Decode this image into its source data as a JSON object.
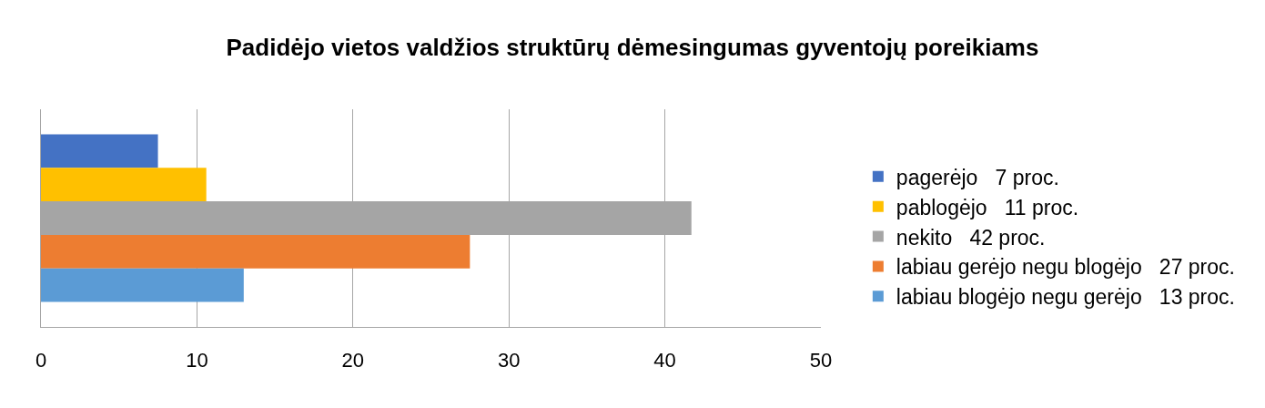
{
  "chart_data": {
    "type": "bar",
    "orientation": "horizontal",
    "title": "Padidėjo vietos valdžios struktūrų dėmesingumas gyventojų poreikiams",
    "categories": [
      null
    ],
    "series": [
      {
        "name": "pagerėjo   7 proc.",
        "color": "#4472c4",
        "values": [
          7.5
        ]
      },
      {
        "name": "pablogėjo   11 proc.",
        "color": "#ffc000",
        "values": [
          10.6
        ]
      },
      {
        "name": "nekito   42 proc.",
        "color": "#a5a5a5",
        "values": [
          41.7
        ]
      },
      {
        "name": "labiau gerėjo negu blogėjo   27 proc.",
        "color": "#ed7d31",
        "values": [
          27.5
        ]
      },
      {
        "name": "labiau blogėjo negu gerėjo   13 proc.",
        "color": "#5b9bd5",
        "values": [
          13.0
        ]
      }
    ],
    "xlim": [
      0,
      50
    ],
    "xticks": [
      0,
      10,
      20,
      30,
      40,
      50
    ],
    "grid": "x",
    "legend": "right",
    "tick_labels": "x"
  }
}
